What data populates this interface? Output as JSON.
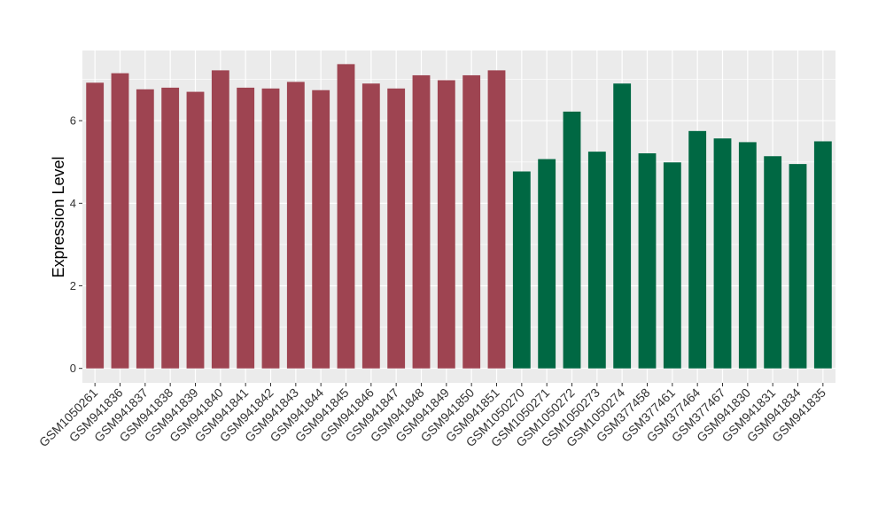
{
  "chart_data": {
    "type": "bar",
    "title": "",
    "xlabel": "",
    "ylabel": "Expression Level",
    "ylim": [
      -0.35,
      7.7
    ],
    "yticks": [
      0,
      2,
      4,
      6
    ],
    "grid": true,
    "legend": "none",
    "panel_background": "#ebebeb",
    "categories": [
      "GSM1050261",
      "GSM941836",
      "GSM941837",
      "GSM941838",
      "GSM941839",
      "GSM941840",
      "GSM941841",
      "GSM941842",
      "GSM941843",
      "GSM941844",
      "GSM941845",
      "GSM941846",
      "GSM941847",
      "GSM941848",
      "GSM941849",
      "GSM941850",
      "GSM941851",
      "GSM1050270",
      "GSM1050271",
      "GSM1050272",
      "GSM1050273",
      "GSM1050274",
      "GSM377458",
      "GSM377461",
      "GSM377464",
      "GSM377467",
      "GSM941830",
      "GSM941831",
      "GSM941834",
      "GSM941835"
    ],
    "values": [
      6.92,
      7.15,
      6.76,
      6.8,
      6.7,
      7.22,
      6.8,
      6.78,
      6.94,
      6.74,
      7.37,
      6.9,
      6.78,
      7.1,
      6.98,
      7.1,
      7.22,
      4.77,
      5.07,
      6.22,
      5.25,
      6.9,
      5.21,
      4.99,
      5.75,
      5.57,
      5.48,
      5.14,
      4.95,
      5.5
    ],
    "colors": [
      "#9e4451",
      "#9e4451",
      "#9e4451",
      "#9e4451",
      "#9e4451",
      "#9e4451",
      "#9e4451",
      "#9e4451",
      "#9e4451",
      "#9e4451",
      "#9e4451",
      "#9e4451",
      "#9e4451",
      "#9e4451",
      "#9e4451",
      "#9e4451",
      "#9e4451",
      "#006843",
      "#006843",
      "#006843",
      "#006843",
      "#006843",
      "#006843",
      "#006843",
      "#006843",
      "#006843",
      "#006843",
      "#006843",
      "#006843",
      "#006843"
    ]
  }
}
